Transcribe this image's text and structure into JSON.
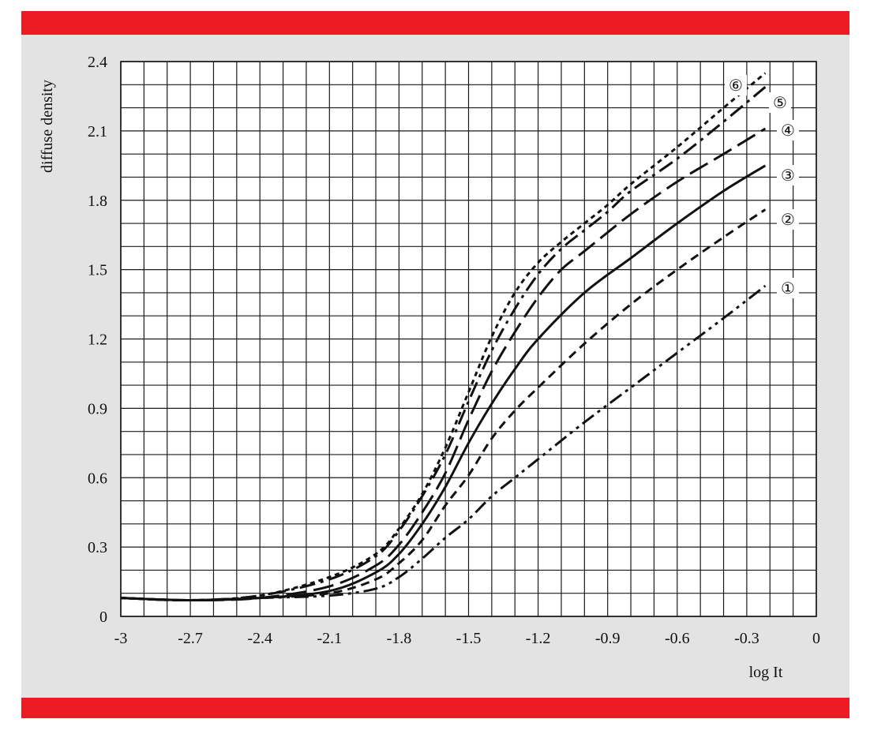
{
  "chart_data": {
    "type": "line",
    "xlabel": "log It",
    "ylabel": "diffuse density",
    "xlim": [
      -3,
      0
    ],
    "ylim": [
      0,
      2.4
    ],
    "x_ticks": [
      "-3",
      "-2.7",
      "-2.4",
      "-2.1",
      "-1.8",
      "-1.5",
      "-1.2",
      "-0.9",
      "-0.6",
      "-0.3",
      "0"
    ],
    "y_ticks": [
      "0",
      "0.3",
      "0.6",
      "0.9",
      "1.2",
      "1.5",
      "1.8",
      "2.1",
      "2.4"
    ],
    "x_grid_step": 0.1,
    "y_grid_step": 0.1,
    "grid": true,
    "series": [
      {
        "name": "①",
        "dash": "dash-dot-dot",
        "x": [
          -3.0,
          -2.7,
          -2.4,
          -2.1,
          -1.9,
          -1.8,
          -1.7,
          -1.6,
          -1.5,
          -1.4,
          -1.3,
          -1.2,
          -1.0,
          -0.8,
          -0.6,
          -0.4,
          -0.22
        ],
        "y": [
          0.08,
          0.07,
          0.08,
          0.09,
          0.12,
          0.17,
          0.25,
          0.34,
          0.42,
          0.52,
          0.6,
          0.68,
          0.84,
          0.99,
          1.14,
          1.29,
          1.43
        ]
      },
      {
        "name": "②",
        "dash": "short-dash",
        "x": [
          -3.0,
          -2.7,
          -2.4,
          -2.1,
          -1.9,
          -1.8,
          -1.7,
          -1.6,
          -1.5,
          -1.4,
          -1.3,
          -1.2,
          -1.0,
          -0.8,
          -0.6,
          -0.4,
          -0.22
        ],
        "y": [
          0.08,
          0.07,
          0.08,
          0.1,
          0.16,
          0.23,
          0.33,
          0.48,
          0.61,
          0.77,
          0.89,
          0.99,
          1.18,
          1.35,
          1.5,
          1.64,
          1.76
        ]
      },
      {
        "name": "③",
        "dash": "solid",
        "x": [
          -3.0,
          -2.7,
          -2.4,
          -2.1,
          -1.9,
          -1.8,
          -1.7,
          -1.6,
          -1.5,
          -1.4,
          -1.3,
          -1.2,
          -1.0,
          -0.8,
          -0.6,
          -0.4,
          -0.22
        ],
        "y": [
          0.08,
          0.07,
          0.08,
          0.11,
          0.19,
          0.27,
          0.4,
          0.56,
          0.75,
          0.92,
          1.07,
          1.2,
          1.4,
          1.55,
          1.7,
          1.84,
          1.95
        ]
      },
      {
        "name": "④",
        "dash": "long-dash",
        "x": [
          -3.0,
          -2.7,
          -2.4,
          -2.1,
          -1.9,
          -1.8,
          -1.7,
          -1.6,
          -1.5,
          -1.4,
          -1.3,
          -1.2,
          -1.1,
          -1.0,
          -0.8,
          -0.6,
          -0.4,
          -0.22
        ],
        "y": [
          0.08,
          0.07,
          0.08,
          0.13,
          0.22,
          0.31,
          0.45,
          0.62,
          0.85,
          1.06,
          1.23,
          1.38,
          1.5,
          1.58,
          1.74,
          1.88,
          2.0,
          2.11
        ]
      },
      {
        "name": "⑤",
        "dash": "dash-dot",
        "x": [
          -3.0,
          -2.7,
          -2.4,
          -2.1,
          -1.9,
          -1.8,
          -1.7,
          -1.6,
          -1.5,
          -1.4,
          -1.3,
          -1.2,
          -1.1,
          -1.0,
          -0.9,
          -0.8,
          -0.6,
          -0.4,
          -0.22
        ],
        "y": [
          0.08,
          0.07,
          0.09,
          0.16,
          0.26,
          0.37,
          0.52,
          0.7,
          0.93,
          1.15,
          1.33,
          1.48,
          1.59,
          1.67,
          1.75,
          1.84,
          1.98,
          2.14,
          2.29
        ]
      },
      {
        "name": "⑥",
        "dash": "dot",
        "x": [
          -3.0,
          -2.7,
          -2.4,
          -2.1,
          -1.9,
          -1.8,
          -1.7,
          -1.6,
          -1.5,
          -1.4,
          -1.3,
          -1.2,
          -1.1,
          -1.0,
          -0.9,
          -0.8,
          -0.6,
          -0.4,
          -0.22
        ],
        "y": [
          0.08,
          0.07,
          0.09,
          0.17,
          0.27,
          0.38,
          0.53,
          0.73,
          0.97,
          1.21,
          1.4,
          1.53,
          1.62,
          1.7,
          1.78,
          1.87,
          2.03,
          2.2,
          2.35
        ]
      }
    ]
  }
}
